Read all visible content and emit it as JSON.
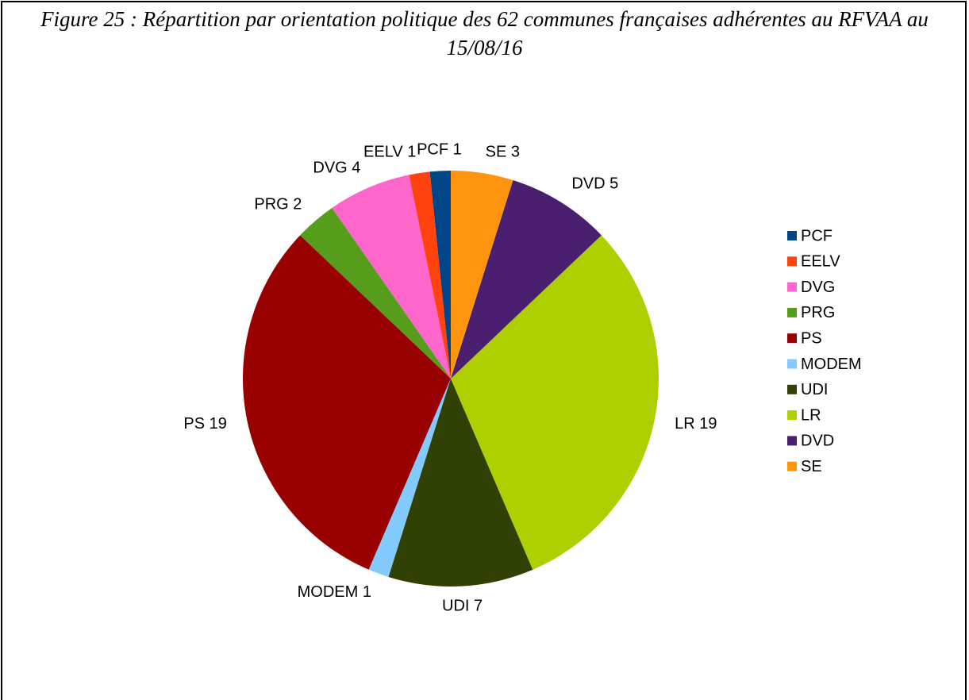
{
  "chart_data": {
    "type": "pie",
    "title": "Figure 25 : Répartition par orientation politique des 62 communes françaises adhérentes au RFVAA au 15/08/16",
    "categories": [
      "PCF",
      "EELV",
      "DVG",
      "PRG",
      "PS",
      "MODEM",
      "UDI",
      "LR",
      "DVD",
      "SE"
    ],
    "values": [
      1,
      1,
      4,
      2,
      19,
      1,
      7,
      19,
      5,
      3
    ],
    "colors": [
      "#004586",
      "#ff420e",
      "#ff66cc",
      "#579d1c",
      "#990000",
      "#83caff",
      "#314004",
      "#aecf00",
      "#4b1f6f",
      "#ff950e"
    ],
    "legend": "right"
  }
}
